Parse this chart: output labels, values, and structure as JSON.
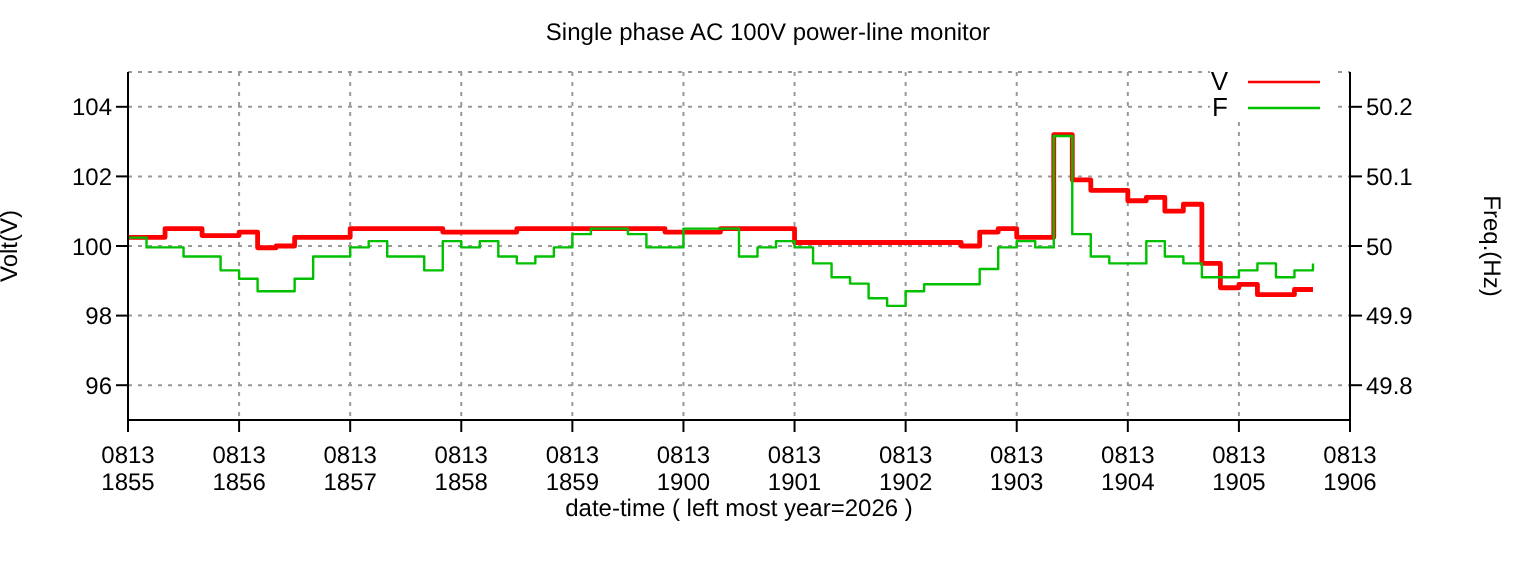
{
  "chart_data": {
    "type": "step",
    "title": "Single phase AC 100V power-line monitor",
    "xlabel": "date-time ( left most year=2026 )",
    "ylabel": "Volt(V)",
    "y2label": "Freq.(Hz)",
    "categories": [
      "0813\n1855",
      null,
      null,
      null,
      null,
      null,
      "0813\n1856",
      null,
      null,
      null,
      null,
      null,
      "0813\n1857",
      null,
      null,
      null,
      null,
      null,
      "0813\n1858",
      null,
      null,
      null,
      null,
      null,
      "0813\n1859",
      null,
      null,
      null,
      null,
      null,
      "0813\n1900",
      null,
      null,
      null,
      null,
      null,
      "0813\n1901",
      null,
      null,
      null,
      null,
      null,
      "0813\n1902",
      null,
      null,
      null,
      null,
      null,
      "0813\n1903",
      null,
      null,
      null,
      null,
      null,
      "0813\n1904",
      null,
      null,
      null,
      null,
      null,
      "0813\n1905",
      null,
      null,
      null,
      null,
      null,
      "0813\n1906"
    ],
    "ylim": [
      95,
      105
    ],
    "yticks": [
      96,
      98,
      100,
      102,
      104
    ],
    "y2lim": [
      49.75,
      50.25
    ],
    "y2ticks": [
      49.8,
      49.9,
      50,
      50.1,
      50.2
    ],
    "grid": true,
    "legend": "top right",
    "marker": "none",
    "line_style": "solid",
    "series": [
      {
        "name": "V",
        "color": "#ff0000",
        "values": [
          100.25,
          100.25,
          100.5,
          100.5,
          100.3,
          100.3,
          100.4,
          99.95,
          100,
          100.25,
          100.25,
          100.25,
          100.5,
          100.5,
          100.5,
          100.5,
          100.5,
          100.4,
          100.4,
          100.4,
          100.4,
          100.5,
          100.5,
          100.5,
          100.5,
          100.5,
          100.5,
          100.5,
          100.5,
          100.4,
          100.4,
          100.4,
          100.5,
          100.5,
          100.5,
          100.5,
          100.1,
          100.1,
          100.1,
          100.1,
          100.1,
          100.1,
          100.1,
          100.1,
          100.1,
          100,
          100.4,
          100.5,
          100.25,
          100.25,
          103.2,
          101.9,
          101.6,
          101.6,
          101.3,
          101.4,
          101,
          101.2,
          99.5,
          98.8,
          98.9,
          98.6,
          98.6,
          98.75,
          98.75,
          null,
          null
        ]
      },
      {
        "name": "F",
        "color": "#00c000",
        "axis": "y2",
        "values": [
          50.012,
          49.998,
          49.998,
          49.985,
          49.985,
          49.965,
          49.953,
          49.935,
          49.935,
          49.953,
          49.985,
          49.985,
          49.998,
          50.007,
          49.985,
          49.985,
          49.965,
          50.007,
          49.998,
          50.007,
          49.985,
          49.975,
          49.985,
          49.998,
          50.017,
          50.025,
          50.025,
          50.017,
          49.998,
          49.998,
          50.025,
          50.025,
          50.025,
          49.985,
          49.998,
          50.007,
          49.998,
          49.975,
          49.955,
          49.946,
          49.925,
          49.914,
          49.935,
          49.945,
          49.945,
          49.945,
          49.967,
          49.998,
          50.007,
          49.998,
          50.158,
          50.017,
          49.985,
          49.975,
          49.975,
          50.007,
          49.985,
          49.975,
          49.955,
          49.955,
          49.965,
          49.975,
          49.955,
          49.965,
          49.975,
          null,
          null
        ]
      }
    ]
  }
}
